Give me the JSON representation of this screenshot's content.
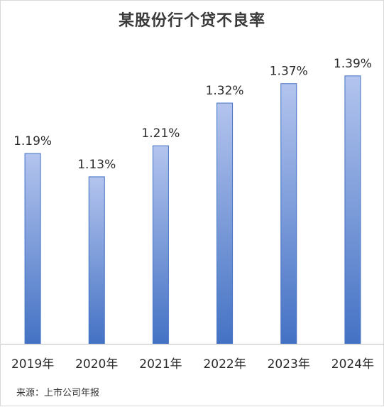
{
  "chart_data": {
    "type": "bar",
    "title": "某股份行个贷不良率",
    "categories": [
      "2019年",
      "2020年",
      "2021年",
      "2022年",
      "2023年",
      "2024年"
    ],
    "values": [
      1.19,
      1.13,
      1.21,
      1.32,
      1.37,
      1.39
    ],
    "value_labels": [
      "1.19%",
      "1.13%",
      "1.21%",
      "1.32%",
      "1.37%",
      "1.39%"
    ],
    "xlabel": "",
    "ylabel": "",
    "ylim": [
      0.7,
      1.45
    ],
    "grid": false,
    "legend": "none",
    "bar_gradient_top": "#b3c4ee",
    "bar_gradient_bottom": "#4472c4",
    "bar_border": "#4472c4",
    "axis_color": "#bfbfbf"
  },
  "source": "来源：上市公司年报"
}
